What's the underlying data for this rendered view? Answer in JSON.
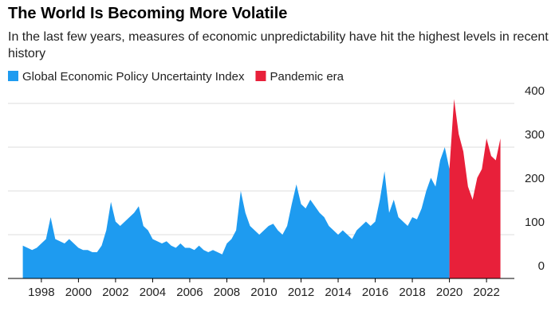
{
  "chart_data": {
    "type": "area",
    "title": "The World Is Becoming More Volatile",
    "subtitle": "In the last few years, measures of economic unpredictability have hit the highest levels in recent history",
    "x": [
      1997,
      1997.25,
      1997.5,
      1997.75,
      1998,
      1998.25,
      1998.5,
      1998.75,
      1999,
      1999.25,
      1999.5,
      1999.75,
      2000,
      2000.25,
      2000.5,
      2000.75,
      2001,
      2001.25,
      2001.5,
      2001.75,
      2002,
      2002.25,
      2002.5,
      2002.75,
      2003,
      2003.25,
      2003.5,
      2003.75,
      2004,
      2004.25,
      2004.5,
      2004.75,
      2005,
      2005.25,
      2005.5,
      2005.75,
      2006,
      2006.25,
      2006.5,
      2006.75,
      2007,
      2007.25,
      2007.5,
      2007.75,
      2008,
      2008.25,
      2008.5,
      2008.75,
      2009,
      2009.25,
      2009.5,
      2009.75,
      2010,
      2010.25,
      2010.5,
      2010.75,
      2011,
      2011.25,
      2011.5,
      2011.75,
      2012,
      2012.25,
      2012.5,
      2012.75,
      2013,
      2013.25,
      2013.5,
      2013.75,
      2014,
      2014.25,
      2014.5,
      2014.75,
      2015,
      2015.25,
      2015.5,
      2015.75,
      2016,
      2016.25,
      2016.5,
      2016.75,
      2017,
      2017.25,
      2017.5,
      2017.75,
      2018,
      2018.25,
      2018.5,
      2018.75,
      2019,
      2019.25,
      2019.5,
      2019.75,
      2020,
      2020.25,
      2020.5,
      2020.75,
      2021,
      2021.25,
      2021.5,
      2021.75,
      2022,
      2022.25,
      2022.5,
      2022.75
    ],
    "series": [
      {
        "name": "Global Economic Policy Uncertainty Index",
        "color": "#1e9bf0",
        "values": [
          75,
          70,
          65,
          70,
          80,
          90,
          140,
          90,
          85,
          80,
          90,
          80,
          70,
          65,
          65,
          60,
          60,
          75,
          110,
          175,
          130,
          120,
          130,
          140,
          150,
          165,
          120,
          110,
          90,
          85,
          80,
          85,
          75,
          70,
          80,
          70,
          70,
          65,
          75,
          65,
          60,
          65,
          60,
          55,
          80,
          90,
          110,
          200,
          150,
          120,
          110,
          100,
          110,
          120,
          125,
          110,
          100,
          120,
          170,
          215,
          170,
          160,
          180,
          165,
          150,
          140,
          120,
          110,
          100,
          110,
          100,
          90,
          110,
          120,
          130,
          120,
          130,
          180,
          245,
          150,
          180,
          140,
          130,
          120,
          140,
          135,
          160,
          200,
          230,
          210,
          270,
          300,
          250,
          null,
          null,
          null,
          null,
          null,
          null,
          null,
          null,
          null,
          null,
          null
        ]
      },
      {
        "name": "Pandemic era",
        "color": "#e8203a",
        "values": [
          null,
          null,
          null,
          null,
          null,
          null,
          null,
          null,
          null,
          null,
          null,
          null,
          null,
          null,
          null,
          null,
          null,
          null,
          null,
          null,
          null,
          null,
          null,
          null,
          null,
          null,
          null,
          null,
          null,
          null,
          null,
          null,
          null,
          null,
          null,
          null,
          null,
          null,
          null,
          null,
          null,
          null,
          null,
          null,
          null,
          null,
          null,
          null,
          null,
          null,
          null,
          null,
          null,
          null,
          null,
          null,
          null,
          null,
          null,
          null,
          null,
          null,
          null,
          null,
          null,
          null,
          null,
          null,
          null,
          null,
          null,
          null,
          null,
          null,
          null,
          null,
          null,
          null,
          null,
          null,
          null,
          null,
          null,
          null,
          null,
          null,
          null,
          null,
          null,
          null,
          null,
          null,
          250,
          410,
          330,
          290,
          210,
          180,
          230,
          250,
          320,
          280,
          270,
          320
        ]
      }
    ],
    "xlim": [
      1996.2,
      2023.5
    ],
    "xticks": [
      1998,
      2000,
      2002,
      2004,
      2006,
      2008,
      2010,
      2012,
      2014,
      2016,
      2018,
      2020,
      2022
    ],
    "ylim": [
      0,
      400
    ],
    "yticks": [
      0,
      100,
      200,
      300,
      400
    ],
    "grid": true
  }
}
